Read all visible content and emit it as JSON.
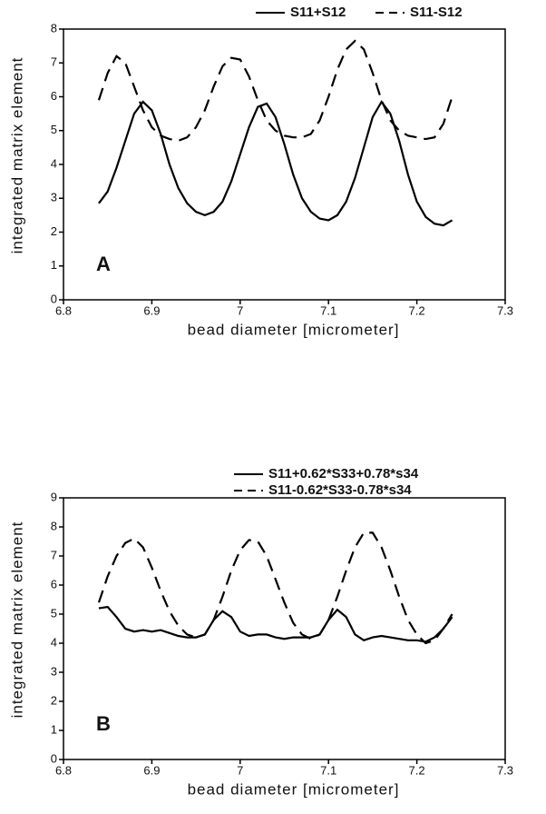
{
  "chart_data": [
    {
      "type": "line",
      "xlabel": "bead diameter [micrometer]",
      "ylabel": "integrated matrix element",
      "annotation": "A",
      "x": [
        6.84,
        6.85,
        6.86,
        6.87,
        6.88,
        6.89,
        6.9,
        6.91,
        6.92,
        6.93,
        6.94,
        6.95,
        6.96,
        6.97,
        6.98,
        6.99,
        7.0,
        7.01,
        7.02,
        7.03,
        7.04,
        7.05,
        7.06,
        7.07,
        7.08,
        7.09,
        7.1,
        7.11,
        7.12,
        7.13,
        7.14,
        7.15,
        7.16,
        7.17,
        7.18,
        7.19,
        7.2,
        7.21,
        7.22,
        7.23,
        7.24
      ],
      "series": [
        {
          "name": "S11+S12",
          "color": "#000000",
          "dash": "solid",
          "values": [
            2.85,
            3.2,
            3.9,
            4.7,
            5.5,
            5.85,
            5.6,
            4.9,
            4.0,
            3.3,
            2.85,
            2.6,
            2.5,
            2.6,
            2.9,
            3.5,
            4.3,
            5.1,
            5.7,
            5.8,
            5.4,
            4.6,
            3.7,
            3.0,
            2.6,
            2.4,
            2.35,
            2.5,
            2.9,
            3.6,
            4.5,
            5.4,
            5.85,
            5.5,
            4.7,
            3.7,
            2.9,
            2.45,
            2.25,
            2.2,
            2.35
          ]
        },
        {
          "name": "S11-S12",
          "color": "#000000",
          "dash": "dashed",
          "values": [
            5.9,
            6.7,
            7.2,
            7.0,
            6.3,
            5.6,
            5.1,
            4.85,
            4.75,
            4.7,
            4.8,
            5.1,
            5.6,
            6.3,
            6.9,
            7.15,
            7.1,
            6.6,
            5.9,
            5.3,
            5.0,
            4.85,
            4.8,
            4.8,
            4.9,
            5.3,
            6.0,
            6.8,
            7.4,
            7.65,
            7.4,
            6.7,
            5.9,
            5.3,
            5.0,
            4.85,
            4.8,
            4.75,
            4.8,
            5.2,
            6.0
          ]
        }
      ],
      "xlim": [
        6.8,
        7.3
      ],
      "xticks": [
        6.8,
        6.9,
        7,
        7.1,
        7.2,
        7.3
      ],
      "ylim": [
        0,
        8
      ],
      "yticks": [
        0,
        1,
        2,
        3,
        4,
        5,
        6,
        7,
        8
      ],
      "grid": false
    },
    {
      "type": "line",
      "xlabel": "bead diameter [micrometer]",
      "ylabel": "integrated matrix element",
      "annotation": "B",
      "x": [
        6.84,
        6.85,
        6.86,
        6.87,
        6.88,
        6.89,
        6.9,
        6.91,
        6.92,
        6.93,
        6.94,
        6.95,
        6.96,
        6.97,
        6.98,
        6.99,
        7.0,
        7.01,
        7.02,
        7.03,
        7.04,
        7.05,
        7.06,
        7.07,
        7.08,
        7.09,
        7.1,
        7.11,
        7.12,
        7.13,
        7.14,
        7.15,
        7.16,
        7.17,
        7.18,
        7.19,
        7.2,
        7.21,
        7.22,
        7.23,
        7.24
      ],
      "series": [
        {
          "name": "S11+0.62*S33+0.78*s34",
          "color": "#000000",
          "dash": "solid",
          "values": [
            5.2,
            5.25,
            4.9,
            4.5,
            4.4,
            4.45,
            4.4,
            4.45,
            4.35,
            4.25,
            4.2,
            4.2,
            4.3,
            4.8,
            5.1,
            4.9,
            4.4,
            4.25,
            4.3,
            4.3,
            4.2,
            4.15,
            4.2,
            4.2,
            4.2,
            4.3,
            4.8,
            5.15,
            4.9,
            4.3,
            4.1,
            4.2,
            4.25,
            4.2,
            4.15,
            4.1,
            4.1,
            4.05,
            4.2,
            4.5,
            4.9
          ]
        },
        {
          "name": "S11-0.62*S33-0.78*s34",
          "color": "#000000",
          "dash": "dashed",
          "values": [
            5.4,
            6.3,
            7.0,
            7.45,
            7.6,
            7.3,
            6.6,
            5.8,
            5.1,
            4.6,
            4.3,
            4.2,
            4.3,
            4.8,
            5.6,
            6.5,
            7.2,
            7.55,
            7.5,
            7.0,
            6.2,
            5.4,
            4.7,
            4.3,
            4.15,
            4.3,
            4.8,
            5.6,
            6.5,
            7.3,
            7.8,
            7.8,
            7.3,
            6.5,
            5.6,
            4.8,
            4.3,
            4.0,
            4.1,
            4.5,
            5.0
          ]
        }
      ],
      "xlim": [
        6.8,
        7.3
      ],
      "xticks": [
        6.8,
        6.9,
        7,
        7.1,
        7.2,
        7.3
      ],
      "ylim": [
        0,
        9
      ],
      "yticks": [
        0,
        1,
        2,
        3,
        4,
        5,
        6,
        7,
        8,
        9
      ],
      "grid": false
    }
  ]
}
